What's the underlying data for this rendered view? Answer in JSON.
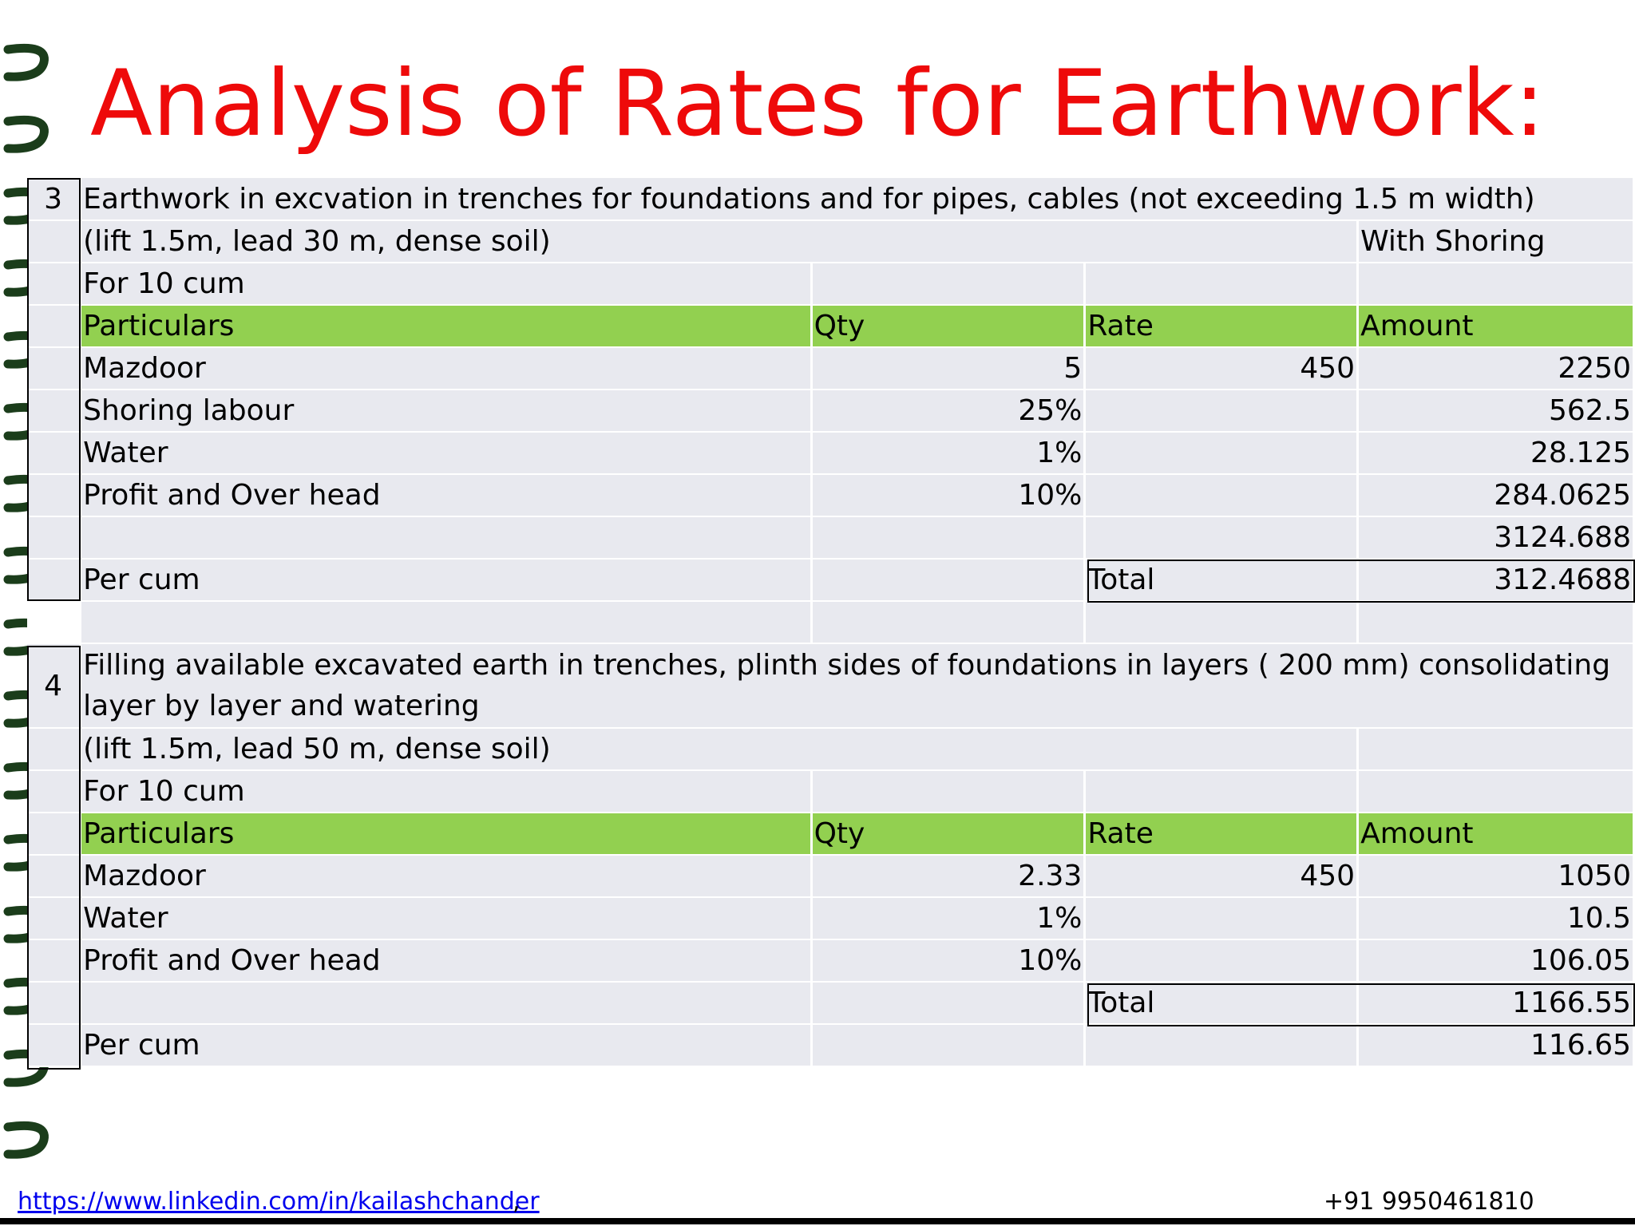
{
  "title": "Analysis of Rates for Earthwork:",
  "colors": {
    "title": "#ee0a0a",
    "header_green": "#92d050",
    "cell_bg": "#e8e9ef",
    "ring": "#1b3d1b"
  },
  "item3": {
    "number": "3",
    "description": "Earthwork in excvation in trenches for foundations and for pipes, cables (not exceeding 1.5 m width)",
    "conditions": "(lift 1.5m, lead 30 m, dense soil)",
    "note": "With Shoring",
    "basis": "For 10 cum",
    "headers": {
      "particulars": "Particulars",
      "qty": "Qty",
      "rate": "Rate",
      "amount": "Amount"
    },
    "rows": [
      {
        "particulars": "Mazdoor",
        "qty": "5",
        "rate": "450",
        "amount": "2250"
      },
      {
        "particulars": "Shoring labour",
        "qty": "25%",
        "rate": "",
        "amount": "562.5"
      },
      {
        "particulars": "Water",
        "qty": "1%",
        "rate": "",
        "amount": "28.125"
      },
      {
        "particulars": "Profit and Over head",
        "qty": "10%",
        "rate": "",
        "amount": "284.0625"
      }
    ],
    "subtotal": "3124.688",
    "per_cum_label": "Per cum",
    "total_label": "Total",
    "total_value": "312.4688"
  },
  "item4": {
    "number": "4",
    "description": "Filling available excavated earth in trenches, plinth sides of foundations in layers ( 200 mm) consolidating layer by layer and watering",
    "conditions": "(lift 1.5m, lead 50 m, dense soil)",
    "basis": "For 10 cum",
    "headers": {
      "particulars": "Particulars",
      "qty": "Qty",
      "rate": "Rate",
      "amount": "Amount"
    },
    "rows": [
      {
        "particulars": "Mazdoor",
        "qty": "2.33",
        "rate": "450",
        "amount": "1050"
      },
      {
        "particulars": "Water",
        "qty": "1%",
        "rate": "",
        "amount": "10.5"
      },
      {
        "particulars": "Profit and Over head",
        "qty": "10%",
        "rate": "",
        "amount": "106.05"
      }
    ],
    "total_label": "Total",
    "total_value": "1166.55",
    "per_cum_label": "Per cum",
    "per_cum_value": "116.65"
  },
  "footer": {
    "link": "https://www.linkedin.com/in/kailashchander",
    "comma": ",",
    "phone": "+91 9950461810"
  }
}
